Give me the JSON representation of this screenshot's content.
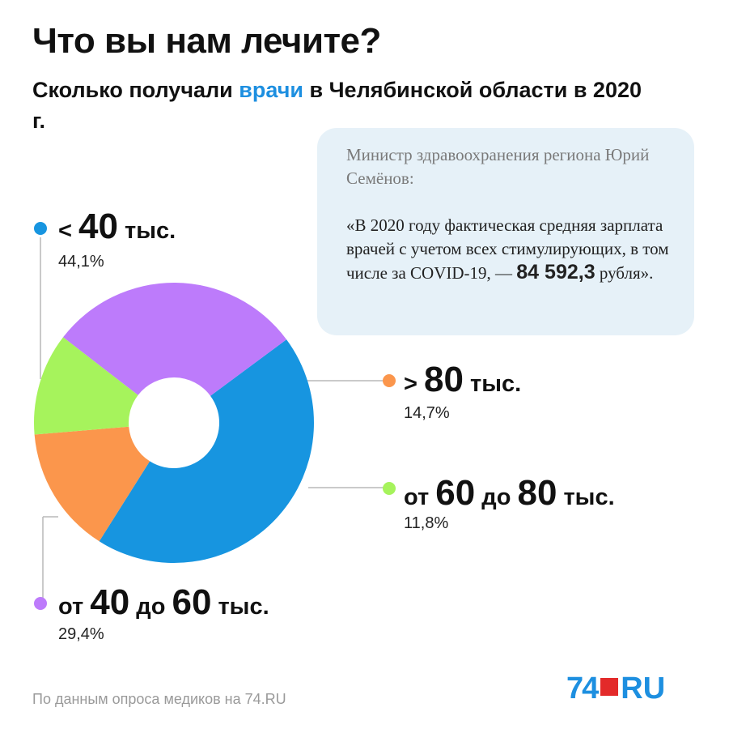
{
  "header": {
    "title": "Что вы нам лечите?",
    "subtitle_before": "Сколько получали ",
    "subtitle_accent": "врачи",
    "subtitle_after": " в Челябинской области в 2020 г."
  },
  "quote": {
    "author": "Министр здравоохранения региона Юрий Семёнов:",
    "text_before": "«В 2020 году фактическая средняя зарплата врачей с учетом всех стимулирующих, в том числе за COVID-19, — ",
    "text_bold": "84 592,3",
    "text_after": " рубля»."
  },
  "chart_data": {
    "type": "pie",
    "variant": "donut",
    "slices": [
      {
        "label_parts": [
          "<",
          "40",
          "тыс."
        ],
        "value": 44.1,
        "value_label": "44,1%",
        "color": "#1795e0"
      },
      {
        "label_parts": [
          ">",
          "80",
          "тыс."
        ],
        "value": 14.7,
        "value_label": "14,7%",
        "color": "#fb964c"
      },
      {
        "label_parts": [
          "от",
          "60",
          "до",
          "80",
          "тыс."
        ],
        "value": 11.8,
        "value_label": "11,8%",
        "color": "#a6f35c"
      },
      {
        "label_parts": [
          "от",
          "40",
          "до",
          "60",
          "тыс."
        ],
        "value": 29.4,
        "value_label": "29,4%",
        "color": "#bd7bfb"
      }
    ]
  },
  "footer": {
    "source": "По данным опроса медиков на 74.RU",
    "logo_number": "74",
    "logo_suffix": "RU"
  }
}
